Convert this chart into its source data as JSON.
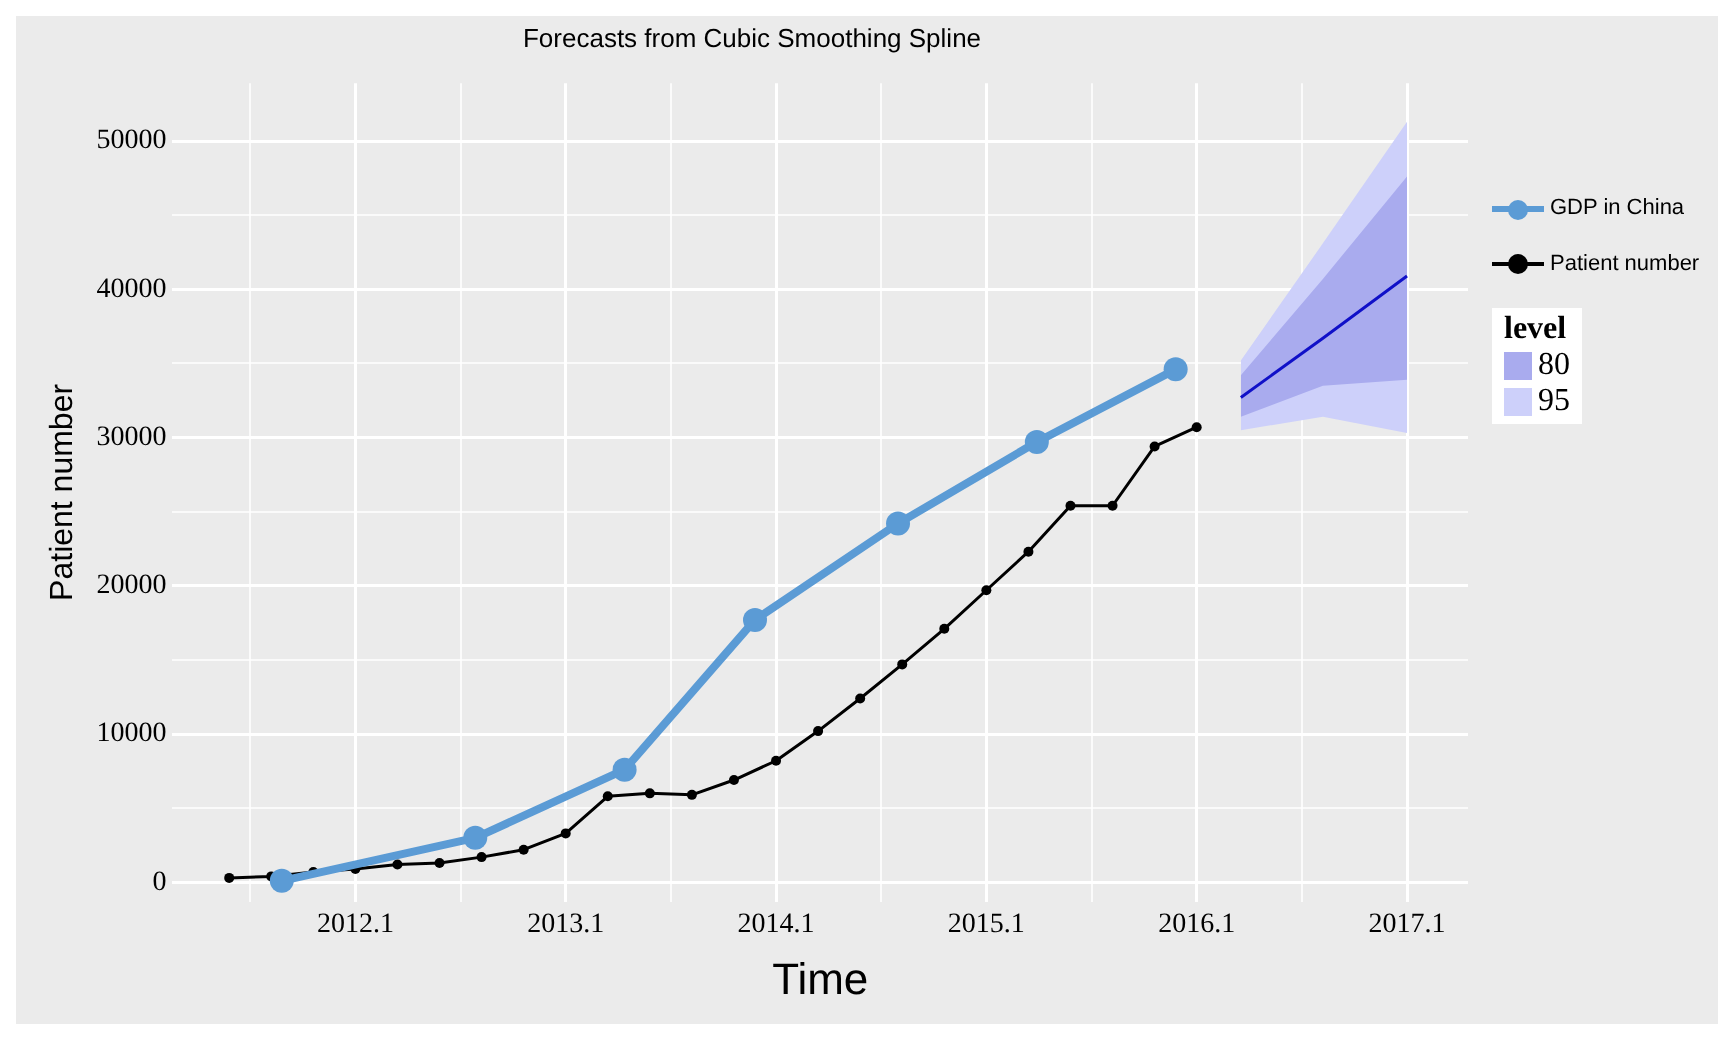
{
  "chart_data": {
    "type": "line",
    "title": "Forecasts from Cubic Smoothing Spline",
    "xlabel": "Time",
    "ylabel": "Patient number",
    "legend_title": "level",
    "xlim": [
      2011.23,
      2017.39
    ],
    "ylim": [
      -1300,
      53900
    ],
    "xticks": [
      {
        "value": 2011.6,
        "label": null
      },
      2012.1,
      {
        "value": 2012.6,
        "label": null
      },
      2013.1,
      {
        "value": 2013.6,
        "label": null
      },
      2014.1,
      {
        "value": 2014.6,
        "label": null
      },
      2015.1,
      {
        "value": 2015.6,
        "label": null
      },
      2016.1,
      {
        "value": 2016.6,
        "label": null
      },
      2017.1
    ],
    "yticks": [
      0,
      {
        "value": 5000,
        "label": null
      },
      10000,
      {
        "value": 15000,
        "label": null
      },
      20000,
      {
        "value": 25000,
        "label": null
      },
      30000,
      {
        "value": 35000,
        "label": null
      },
      40000,
      {
        "value": 45000,
        "label": null
      },
      50000
    ],
    "grid": true,
    "legend": "right",
    "series": [
      {
        "name": "GDP in China",
        "type": "line",
        "color": "#5b9bd5",
        "marker": "circle",
        "x": [
          2011.75,
          2012.67,
          2013.38,
          2014.0,
          2014.68,
          2015.34,
          2016.0
        ],
        "values": [
          100,
          3000,
          7600,
          17700,
          24200,
          29700,
          34600
        ]
      },
      {
        "name": "Patient number",
        "type": "line",
        "color": "#000000",
        "marker": "circle",
        "x": [
          2011.5,
          2011.7,
          2011.9,
          2012.1,
          2012.3,
          2012.5,
          2012.7,
          2012.9,
          2013.1,
          2013.3,
          2013.5,
          2013.7,
          2013.9,
          2014.1,
          2014.3,
          2014.5,
          2014.7,
          2014.9,
          2015.1,
          2015.3,
          2015.5,
          2015.7,
          2015.9,
          2016.1
        ],
        "values": [
          300,
          400,
          700,
          900,
          1200,
          1300,
          1700,
          2200,
          3300,
          5800,
          6000,
          5900,
          6900,
          8200,
          10200,
          12400,
          14700,
          17100,
          19700,
          22300,
          25400,
          25400,
          29400,
          30700
        ]
      },
      {
        "type": "line",
        "color": "#1010c8",
        "marker": "none",
        "x": [
          2016.31,
          2016.7,
          2017.1
        ],
        "values": [
          32700,
          36700,
          40900
        ]
      },
      {
        "name": "80",
        "type": "line",
        "color": "#a9abee",
        "x": [
          2016.31,
          2016.7,
          2017.1
        ],
        "values": [
          null,
          null,
          null
        ],
        "lower": [
          31400,
          33500,
          33900
        ],
        "upper": [
          34200,
          40700,
          47600
        ]
      },
      {
        "name": "95",
        "type": "line",
        "color": "#cdd0fa",
        "x": [
          2016.31,
          2016.7,
          2017.1
        ],
        "values": [
          null,
          null,
          null
        ],
        "lower": [
          30500,
          31400,
          30300
        ],
        "upper": [
          35200,
          43100,
          51300
        ]
      }
    ]
  }
}
